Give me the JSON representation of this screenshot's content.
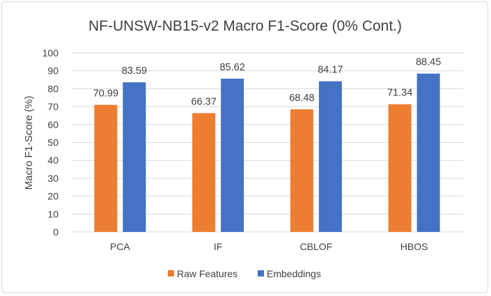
{
  "chart_data": {
    "type": "bar",
    "title": "NF-UNSW-NB15-v2 Macro F1-Score (0% Cont.)",
    "xlabel": "",
    "ylabel": "Macro F1-Score (%)",
    "ylim": [
      0,
      100
    ],
    "yticks": [
      0,
      10,
      20,
      30,
      40,
      50,
      60,
      70,
      80,
      90,
      100
    ],
    "grid": true,
    "legend_position": "bottom",
    "categories": [
      "PCA",
      "IF",
      "CBLOF",
      "HBOS"
    ],
    "series": [
      {
        "name": "Raw Features",
        "color": "#ed7d31",
        "values": [
          70.99,
          66.37,
          68.48,
          71.34
        ],
        "labels": [
          "70.99",
          "66.37",
          "68.48",
          "71.34"
        ]
      },
      {
        "name": "Embeddings",
        "color": "#4472c4",
        "values": [
          83.59,
          85.62,
          84.17,
          88.45
        ],
        "labels": [
          "83.59",
          "85.62",
          "84.17",
          "88.45"
        ]
      }
    ]
  }
}
